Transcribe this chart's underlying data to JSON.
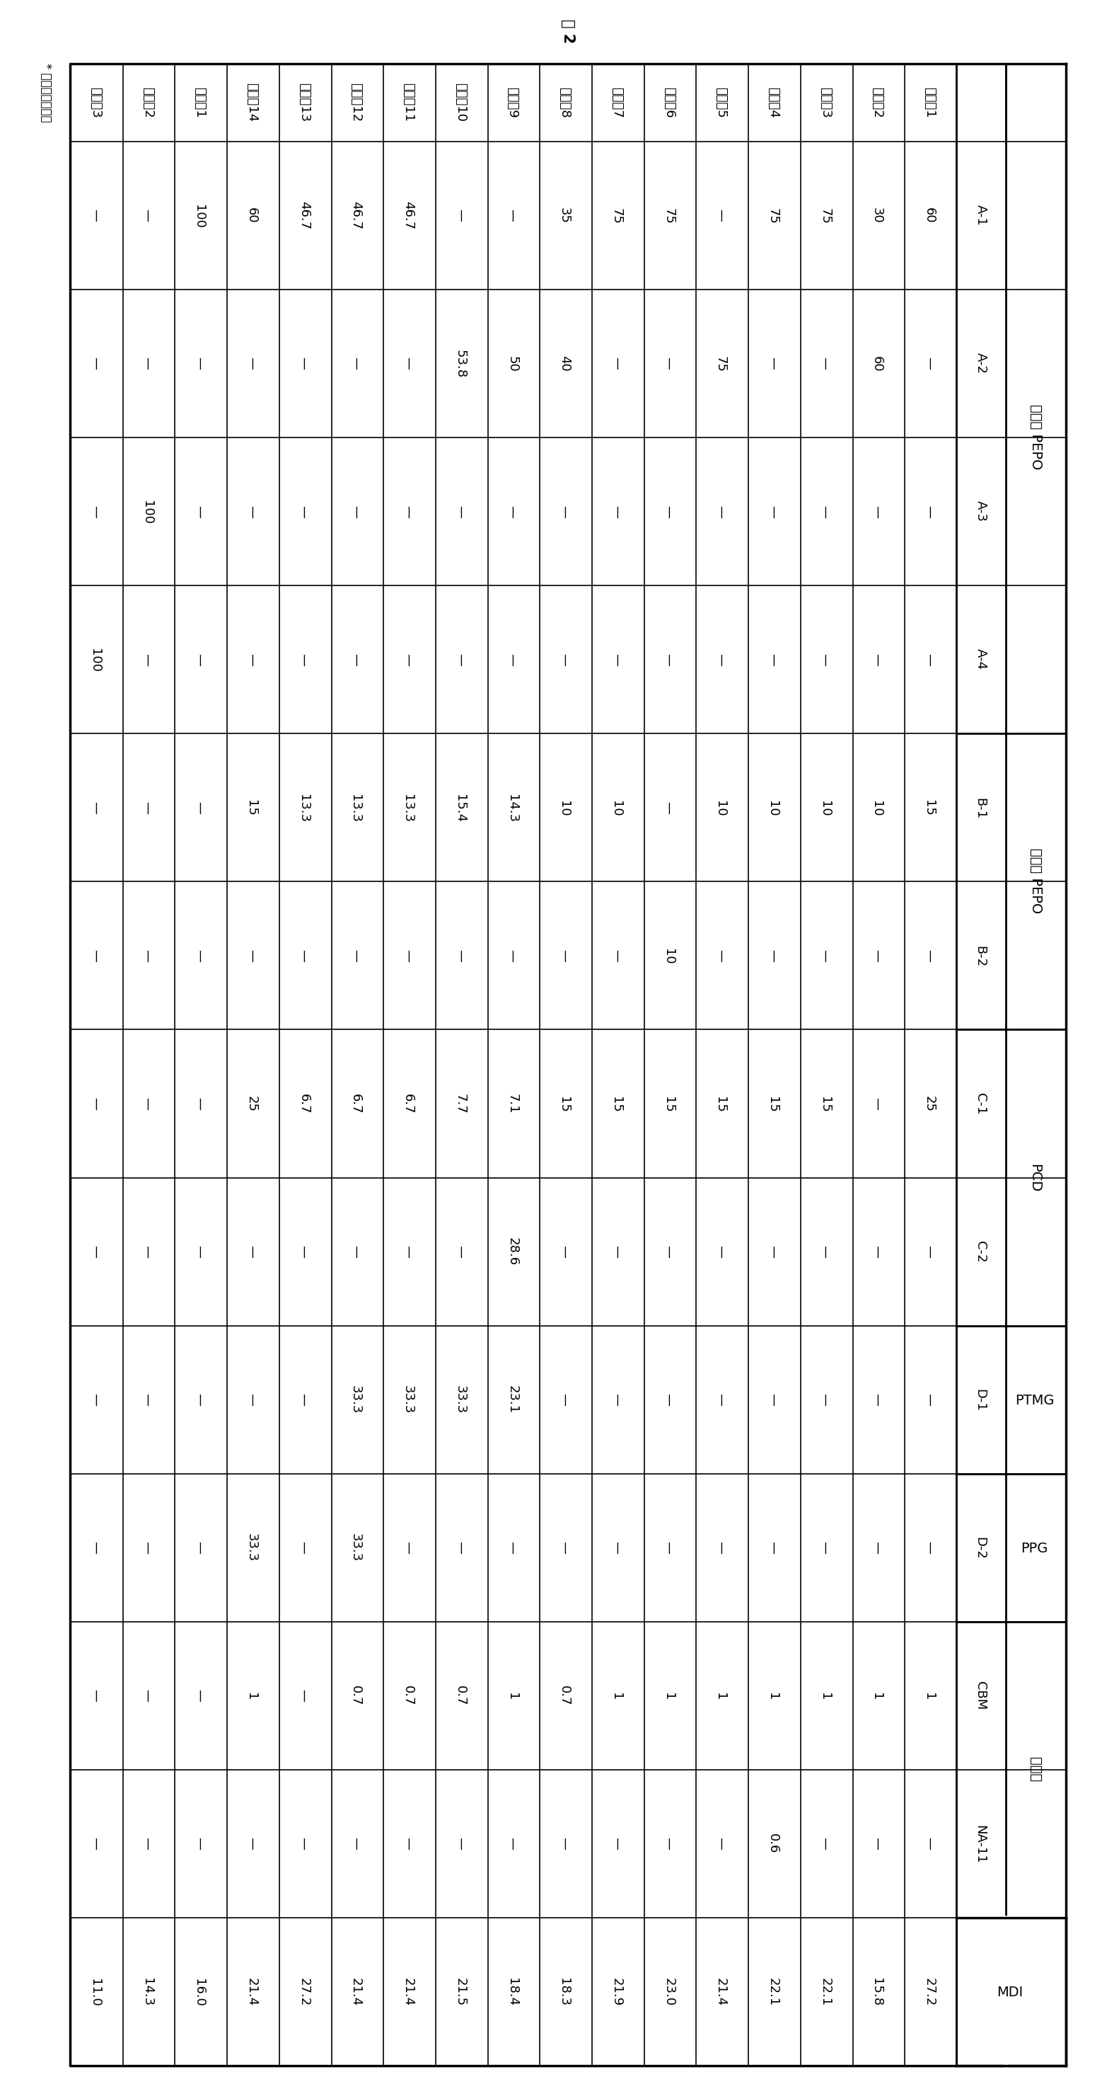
{
  "title": "表 2",
  "footnote": "* 单位为质量份。",
  "col_headers": [
    "A-1",
    "A-2",
    "A-3",
    "A-4",
    "B-1",
    "B-2",
    "C-1",
    "C-2",
    "D-1",
    "D-2",
    "CBM",
    "NA-11",
    "MDI"
  ],
  "groups": [
    [
      "结晶性 PEPO",
      0,
      3
    ],
    [
      "非晶性 PEPO",
      4,
      5
    ],
    [
      "PCD",
      6,
      7
    ],
    [
      "PTMG",
      8,
      8
    ],
    [
      "PPG",
      9,
      9
    ],
    [
      "成核剂",
      10,
      11
    ],
    [
      "MDI",
      12,
      12
    ]
  ],
  "row_labels": [
    "実施例1",
    "実施例2",
    "実施例3",
    "実施例4",
    "実施例5",
    "実施例6",
    "実施例7",
    "実施例8",
    "実施例9",
    "実施例10",
    "実施例11",
    "実施例12",
    "実施例13",
    "実施例14",
    "比較例1",
    "比較例2",
    "比較例3"
  ],
  "data": [
    [
      "60",
      "—",
      "—",
      "—",
      "15",
      "—",
      "25",
      "—",
      "—",
      "—",
      "1",
      "—",
      "27.2"
    ],
    [
      "30",
      "60",
      "—",
      "—",
      "10",
      "—",
      "—",
      "—",
      "—",
      "—",
      "1",
      "—",
      "15.8"
    ],
    [
      "75",
      "—",
      "—",
      "—",
      "10",
      "—",
      "15",
      "—",
      "—",
      "—",
      "1",
      "—",
      "22.1"
    ],
    [
      "75",
      "—",
      "—",
      "—",
      "10",
      "—",
      "15",
      "—",
      "—",
      "—",
      "1",
      "0.6",
      "22.1"
    ],
    [
      "—",
      "75",
      "—",
      "—",
      "10",
      "—",
      "15",
      "—",
      "—",
      "—",
      "1",
      "—",
      "21.4"
    ],
    [
      "75",
      "—",
      "—",
      "—",
      "—",
      "10",
      "15",
      "—",
      "—",
      "—",
      "1",
      "—",
      "23.0"
    ],
    [
      "75",
      "—",
      "—",
      "—",
      "10",
      "—",
      "15",
      "—",
      "—",
      "—",
      "1",
      "—",
      "21.9"
    ],
    [
      "35",
      "40",
      "—",
      "—",
      "10",
      "—",
      "15",
      "—",
      "—",
      "—",
      "0.7",
      "—",
      "18.3"
    ],
    [
      "—",
      "50",
      "—",
      "—",
      "14.3",
      "—",
      "7.1",
      "28.6",
      "23.1",
      "—",
      "1",
      "—",
      "18.4"
    ],
    [
      "—",
      "53.8",
      "—",
      "—",
      "15.4",
      "—",
      "7.7",
      "—",
      "33.3",
      "—",
      "0.7",
      "—",
      "21.5"
    ],
    [
      "46.7",
      "—",
      "—",
      "—",
      "13.3",
      "—",
      "6.7",
      "—",
      "33.3",
      "—",
      "0.7",
      "—",
      "21.4"
    ],
    [
      "46.7",
      "—",
      "—",
      "—",
      "13.3",
      "—",
      "6.7",
      "—",
      "33.3",
      "33.3",
      "0.7",
      "—",
      "21.4"
    ],
    [
      "46.7",
      "—",
      "—",
      "—",
      "13.3",
      "—",
      "6.7",
      "—",
      "—",
      "—",
      "—",
      "—",
      "27.2"
    ],
    [
      "60",
      "—",
      "—",
      "—",
      "15",
      "—",
      "25",
      "—",
      "—",
      "33.3",
      "1",
      "—",
      "21.4"
    ],
    [
      "100",
      "—",
      "—",
      "—",
      "—",
      "—",
      "—",
      "—",
      "—",
      "—",
      "—",
      "—",
      "16.0"
    ],
    [
      "—",
      "—",
      "100",
      "—",
      "—",
      "—",
      "—",
      "—",
      "—",
      "—",
      "—",
      "—",
      "14.3"
    ],
    [
      "—",
      "—",
      "—",
      "100",
      "—",
      "—",
      "—",
      "—",
      "—",
      "—",
      "—",
      "—",
      "11.0"
    ]
  ],
  "bg_color": "white",
  "line_color": "black",
  "text_color": "black",
  "font_size_data": 13,
  "font_size_header": 13,
  "font_size_group": 14,
  "font_size_title": 15,
  "font_size_footnote": 12
}
